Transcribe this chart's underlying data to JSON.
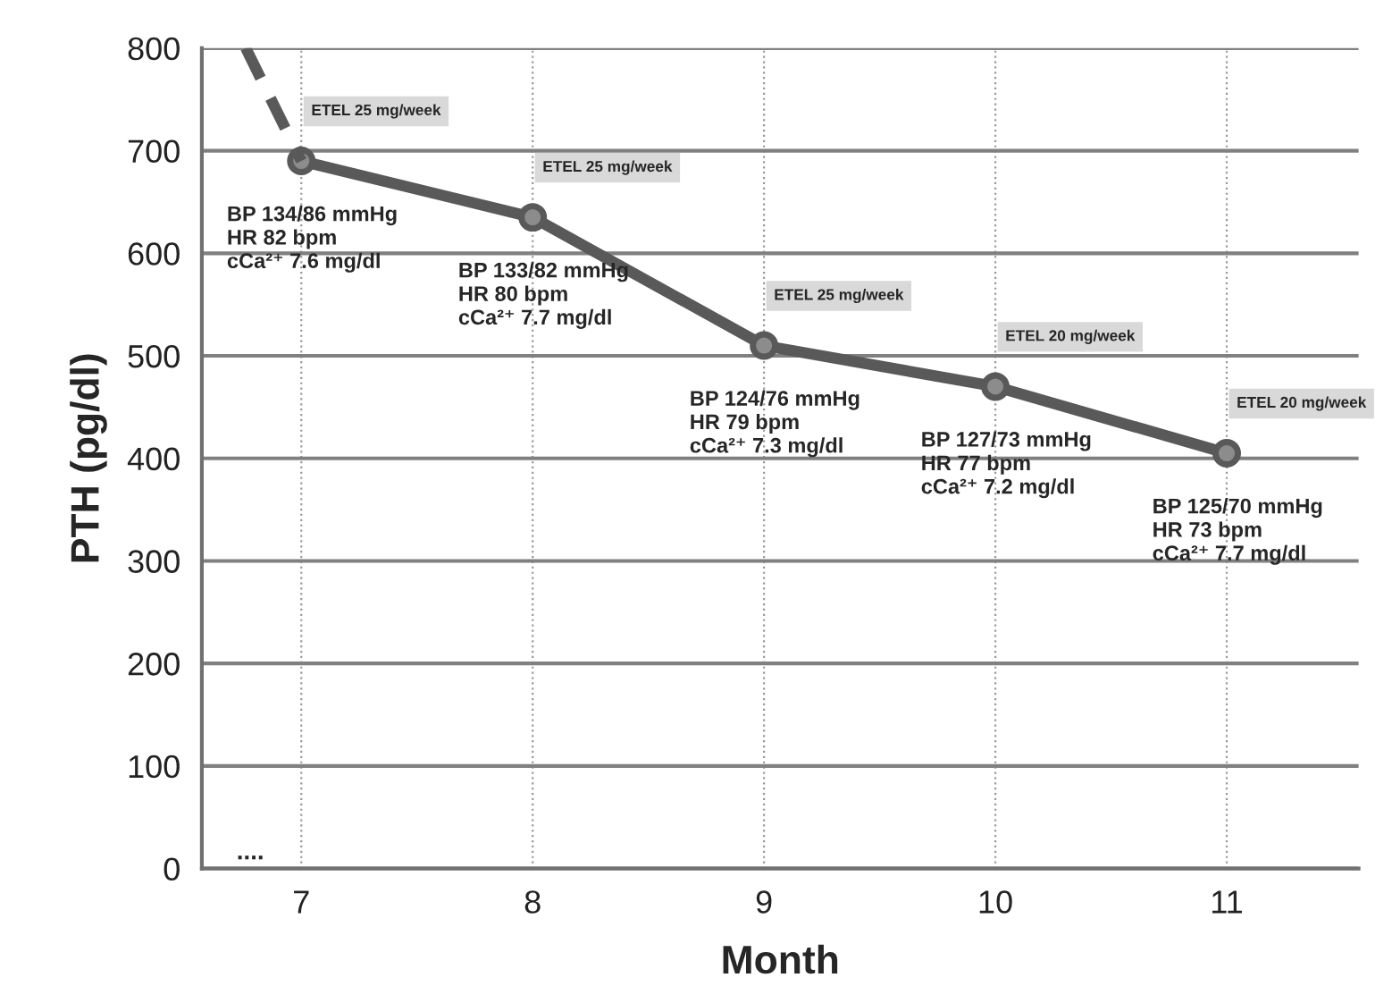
{
  "chart_data": {
    "type": "line",
    "xlabel": "Month",
    "ylabel": "PTH (pg/dl)",
    "x": [
      7,
      8,
      9,
      10,
      11
    ],
    "series": [
      {
        "color": "#595959",
        "values": [
          690,
          635,
          510,
          470,
          405
        ],
        "marker": "circle",
        "line_style": "solid"
      },
      {
        "color": "#595959",
        "x": [
          6.76,
          7
        ],
        "values": [
          800,
          690
        ],
        "marker": "none",
        "line_style": "dashed"
      }
    ],
    "xlim": [
      6.57,
      11.57
    ],
    "xticks": [
      7,
      8,
      9,
      10,
      11
    ],
    "ylim": [
      0,
      800
    ],
    "yticks": [
      0,
      100,
      200,
      300,
      400,
      500,
      600,
      700,
      800
    ],
    "grid": true,
    "legend": false,
    "annotations": [
      "ETEL 25 mg/week",
      "ETEL 25 mg/week",
      "ETEL 25 mg/week",
      "ETEL 20 mg/week",
      "ETEL 20 mg/week",
      "BP 134/86 mmHg\nHR 82 bpm\ncCa²⁺ 7.6 mg/dl",
      "BP 133/82 mmHg\nHR 80 bpm\ncCa²⁺ 7.7 mg/dl",
      "BP 124/76 mmHg\nHR 79 bpm\ncCa²⁺ 7.3 mg/dl",
      "BP 127/73 mmHg\nHR 77 bpm\ncCa²⁺ 7.2 mg/dl",
      "BP 125/70 mmHg\nHR 73 bpm\ncCa²⁺ 7.7 mg/dl",
      "...."
    ]
  }
}
